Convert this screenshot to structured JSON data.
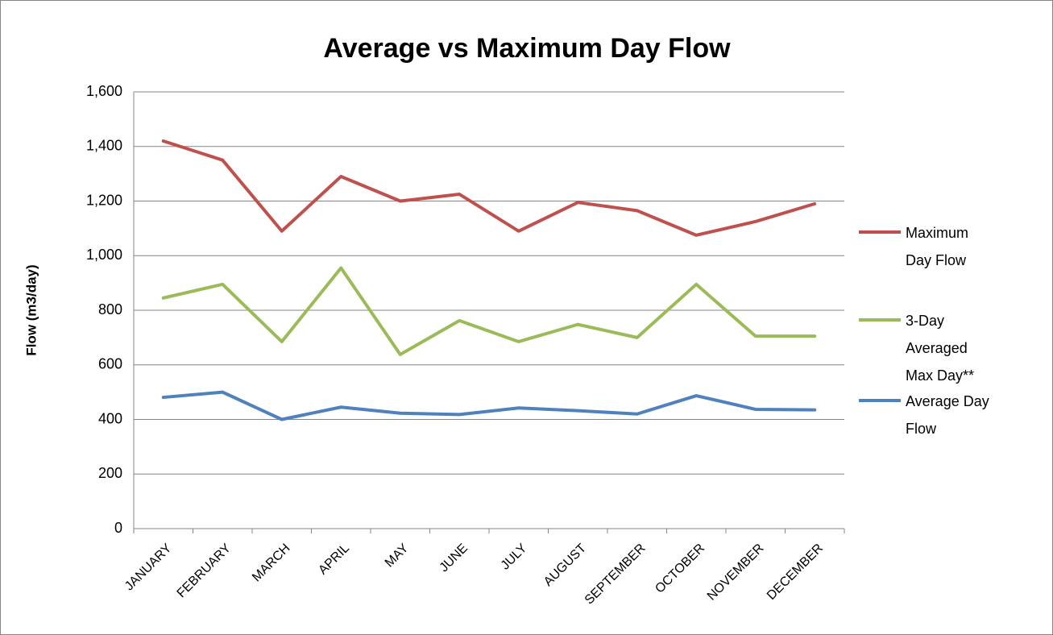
{
  "chart_data": {
    "type": "line",
    "title": "Average vs Maximum Day Flow",
    "y_label": "Flow (m3/day)",
    "categories": [
      "JANUARY",
      "FEBRUARY",
      "MARCH",
      "APRIL",
      "MAY",
      "JUNE",
      "JULY",
      "AUGUST",
      "SEPTEMBER",
      "OCTOBER",
      "NOVEMBER",
      "DECEMBER"
    ],
    "series": [
      {
        "name": "Maximum Day Flow",
        "color": "#c0504d",
        "values": [
          1420,
          1350,
          1090,
          1290,
          1200,
          1225,
          1090,
          1195,
          1165,
          1075,
          1125,
          1190
        ]
      },
      {
        "name": "3-Day Averaged Max Day**",
        "color": "#9bbb59",
        "values": [
          845,
          895,
          685,
          955,
          638,
          762,
          685,
          748,
          700,
          895,
          705,
          705
        ]
      },
      {
        "name": "Average Day Flow",
        "color": "#4f81bd",
        "values": [
          481,
          500,
          400,
          445,
          423,
          418,
          442,
          432,
          420,
          487,
          437,
          435
        ]
      }
    ],
    "ylim": [
      0,
      1600
    ],
    "yticks": [
      0,
      200,
      400,
      600,
      800,
      {
        "value": 1000,
        "label": "1,000"
      },
      {
        "value": 1200,
        "label": "1,200"
      },
      {
        "value": 1400,
        "label": "1,400"
      },
      {
        "value": 1600,
        "label": "1,600"
      }
    ],
    "grid": true,
    "legend": "right"
  }
}
